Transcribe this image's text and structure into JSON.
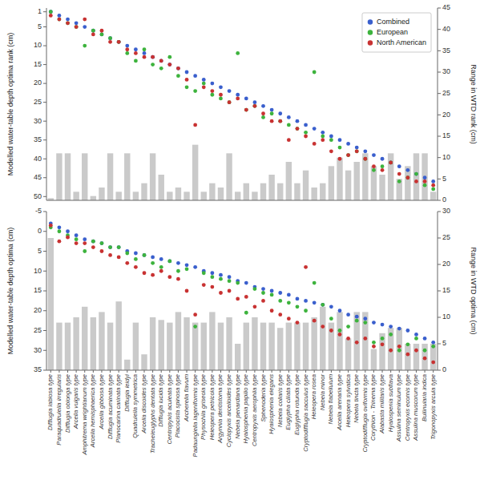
{
  "chart_data": [
    {
      "type": "scatter",
      "categories": [
        null,
        null,
        null,
        null,
        null,
        null,
        null,
        null,
        null,
        null,
        null,
        null,
        null,
        null,
        null,
        null,
        null,
        null,
        null,
        null,
        null,
        null,
        null,
        null,
        null,
        null,
        null,
        null,
        null,
        null,
        null,
        null,
        null,
        null,
        null,
        null,
        null,
        null,
        null,
        null,
        null,
        null,
        null,
        null,
        null,
        null
      ],
      "tick_labels": "y",
      "legend": "upper right",
      "grid": false,
      "ylabel": "Modelled water-table depth optima rank (cm)",
      "y2label": "Range in WTD rank (cm)",
      "ylim": [
        51,
        0
      ],
      "yticks": [
        1,
        5,
        10,
        15,
        20,
        25,
        30,
        35,
        40,
        45,
        50
      ],
      "y2lim": [
        0,
        45
      ],
      "y2ticks": [
        0,
        5,
        10,
        15,
        20,
        25,
        30,
        35,
        40,
        45
      ],
      "series": [
        {
          "type": "bar",
          "axis": "y2",
          "color": "#b8b8b8",
          "values": [
            0.5,
            11,
            11,
            2,
            11,
            1,
            3,
            11,
            2,
            11,
            2,
            4,
            11,
            6,
            2,
            3,
            2,
            13,
            2,
            4,
            3,
            11,
            2,
            4,
            2,
            4,
            6,
            4,
            9,
            4,
            7,
            3,
            4,
            8,
            10,
            7,
            9,
            11,
            8,
            6,
            11,
            5,
            8,
            11,
            11,
            2
          ]
        },
        {
          "name": "Combined",
          "type": "scatter",
          "color": "#3a5fcd",
          "values": [
            1,
            2,
            3,
            4,
            5,
            6,
            7,
            8,
            9,
            10,
            11,
            12,
            13,
            14,
            15,
            16,
            17,
            18,
            19,
            20,
            21,
            22,
            23,
            24,
            25,
            26,
            27,
            28,
            29,
            30,
            31,
            32,
            33,
            34,
            35,
            36,
            37,
            38,
            39,
            40,
            41,
            42,
            43,
            44,
            45,
            46
          ]
        },
        {
          "name": "European",
          "type": "scatter",
          "color": "#3db33d",
          "values": [
            1,
            3,
            4,
            5,
            10,
            6,
            7,
            8,
            9,
            12,
            14,
            11,
            15,
            16,
            13,
            18,
            21,
            22,
            20,
            23,
            24,
            25,
            12,
            27,
            26,
            29,
            28,
            30,
            31,
            32,
            33,
            17,
            34,
            35,
            37,
            39,
            38,
            40,
            43,
            42,
            41,
            46,
            45,
            44,
            47,
            48
          ]
        },
        {
          "name": "North American",
          "type": "scatter",
          "color": "#c83232",
          "values": [
            2,
            3,
            4,
            5,
            3,
            7,
            6,
            9,
            9,
            11,
            12,
            13,
            13,
            14,
            15,
            16,
            19,
            31,
            21,
            22,
            23,
            25,
            24,
            27,
            26,
            28,
            30,
            30,
            35,
            32,
            34,
            36,
            35,
            38,
            40,
            39,
            38,
            40,
            42,
            43,
            41,
            44,
            45,
            46,
            46,
            47
          ]
        }
      ]
    },
    {
      "type": "scatter",
      "categories": [
        "Difflugia labiosa type",
        "Paraquadrulella irregularis",
        "Difflugia oblonga type",
        "Arcella vulgaris type",
        "Amphitrema wrightianum type",
        "Arcella hemisphaerica type",
        "Arcella gibbosa type",
        "Difflugia acuminata type",
        "Planocarina carinata type",
        "Difflugia leidyi",
        "Quadrulella symmetrica",
        "Arcella discoides type",
        "Tracheleuglyphs dentata type",
        "Difflugia lucida type",
        "Centropyxis aculeata type",
        "Placocista spinosa type",
        "Archerella flavum",
        "Padaungiella lageniformis type",
        "Physochila griseola type",
        "Heleopera petricola type",
        "Argynnia dentistoma type",
        "Cyclopyxis arcelloides type",
        "Nebela penardiana type",
        "Hyalosphenia papilio type",
        "Centropyxis aerophila type",
        "Sphenoderia type",
        "Hyalosphenia elegans",
        "Nebela collaris type",
        "Euglypha ciliata type",
        "Euglypha rotunda type",
        "Cryptodifflugia sacculus type",
        "Heleopera rosea",
        "Nebela minor",
        "Nebela flabellulum",
        "Arcella arenaria type",
        "Heleopera sylvatica",
        "Nebela tincta type",
        "Cryptodifflugia oviformis type",
        "Corythion - Trinema type",
        "Alabasta militaris type",
        "Hyalospenia subflava",
        "Assulina seminulum type",
        "Centropyxis ecornis type",
        "Assulina muscorum type",
        "Bullinularia indica",
        "Trigonopyxis arcula type"
      ],
      "grid": false,
      "ylabel": "Modelled water-table depth optima (cm)",
      "y2label": "Range in WTD optima (cm)",
      "ylim": [
        35,
        -5
      ],
      "yticks": [
        -5,
        0,
        5,
        10,
        15,
        20,
        25,
        30,
        35
      ],
      "y2lim": [
        0,
        30
      ],
      "y2ticks": [
        0,
        5,
        10,
        15,
        20,
        25,
        30
      ],
      "series": [
        {
          "type": "bar",
          "axis": "y2",
          "color": "#b8b8b8",
          "values": [
            25,
            9,
            9,
            10,
            12,
            10,
            11,
            9,
            13,
            2,
            9,
            3,
            10,
            9.5,
            9,
            11,
            10,
            9,
            9,
            11,
            9,
            10,
            5,
            9,
            10,
            9,
            9,
            8,
            9,
            9,
            9,
            10,
            12,
            9,
            11,
            6,
            11,
            11,
            4,
            7,
            8,
            8,
            5,
            5,
            5,
            5
          ]
        },
        {
          "type": "scatter",
          "color": "#3a5fcd",
          "values": [
            -2,
            -1,
            0,
            1,
            2,
            2.5,
            3,
            4,
            4,
            5,
            5.5,
            6,
            6.5,
            7,
            7.5,
            8,
            8.5,
            9,
            10,
            10.5,
            11,
            11.5,
            12.5,
            13,
            14,
            14.5,
            15,
            15.5,
            16,
            17,
            17.5,
            18,
            18.5,
            19,
            20,
            21,
            21.5,
            22,
            23,
            23.5,
            24,
            24.5,
            25,
            26,
            27,
            28
          ]
        },
        {
          "type": "scatter",
          "color": "#3db33d",
          "values": [
            -1,
            0,
            1,
            2,
            5,
            2.5,
            3,
            4,
            4,
            5.5,
            7,
            6,
            8,
            9,
            7.5,
            10,
            9.5,
            24,
            10.5,
            11.5,
            12,
            12.5,
            13,
            20.5,
            14.5,
            15.5,
            16,
            17.5,
            18,
            19,
            20,
            13,
            18.5,
            22,
            25,
            24,
            22.5,
            23,
            28,
            27,
            26,
            30,
            28.5,
            27,
            30,
            29
          ]
        },
        {
          "type": "scatter",
          "color": "#c83232",
          "values": [
            -1.5,
            2.5,
            1.5,
            3,
            3,
            4,
            5,
            6,
            6.5,
            8,
            9,
            10.5,
            11,
            10,
            11.5,
            12,
            15,
            21,
            13.5,
            14,
            15.5,
            15,
            17,
            16.5,
            19,
            17.5,
            20,
            21,
            22,
            23,
            9,
            22.5,
            24,
            25,
            26,
            27,
            28,
            27,
            29,
            28.5,
            30,
            29,
            31,
            30,
            32,
            33
          ]
        }
      ]
    }
  ]
}
